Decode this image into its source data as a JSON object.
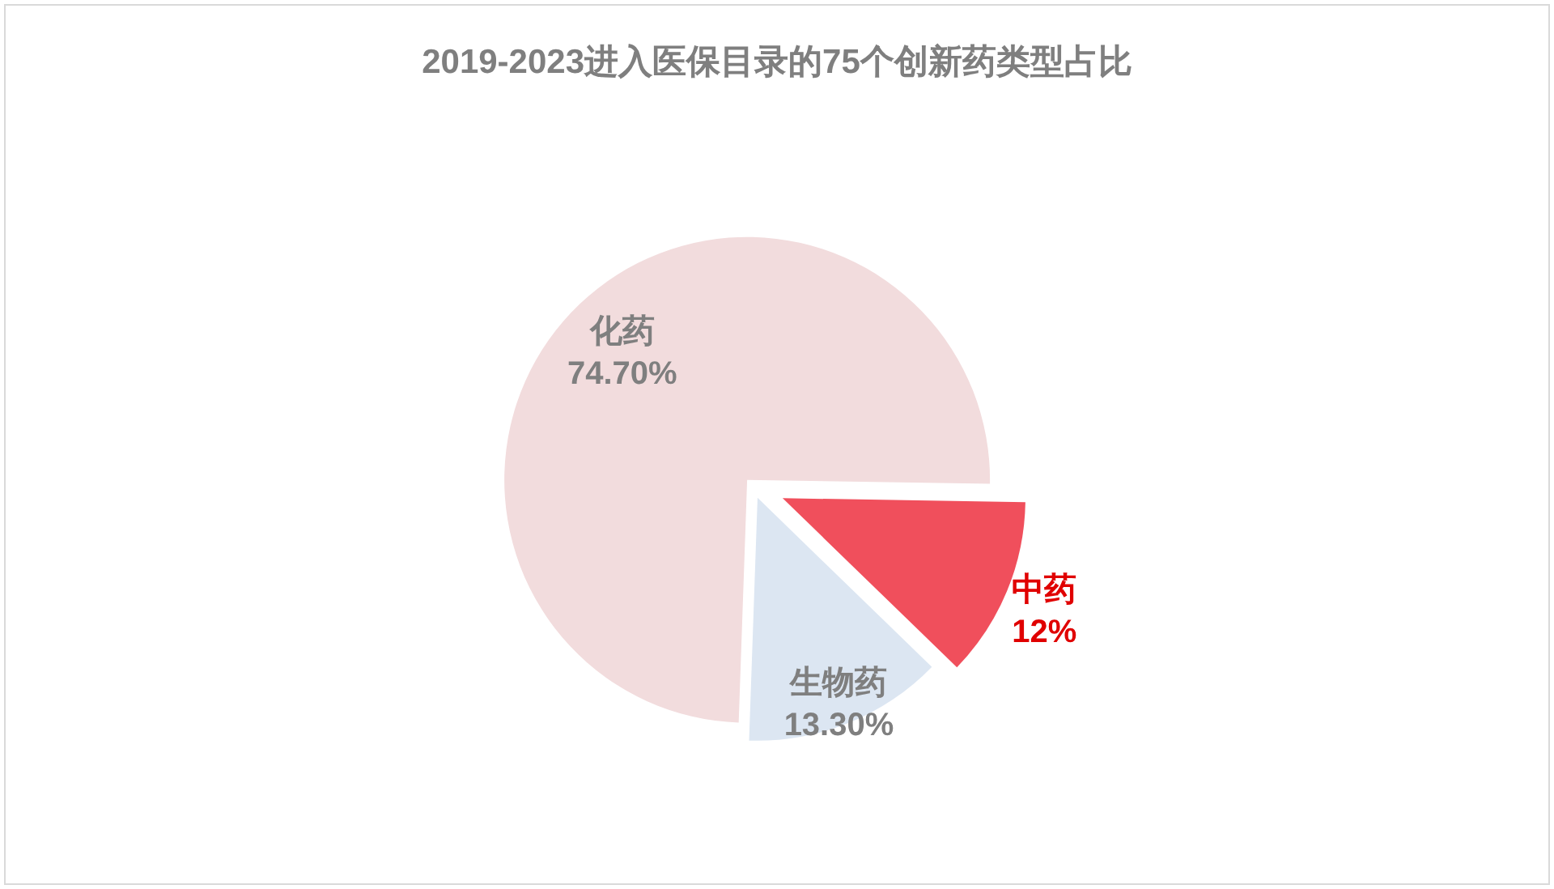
{
  "chart_data": {
    "type": "pie",
    "title": "2019-2023进入医保目录的75个创新药类型占比",
    "categories": [
      "化药",
      "中药",
      "生物药"
    ],
    "values": [
      74.7,
      12,
      13.3
    ],
    "value_labels": [
      "74.70%",
      "12%",
      "13.30%"
    ],
    "colors": [
      "#f2dcdd",
      "#f04f5c",
      "#dce6f2"
    ],
    "legend": false
  }
}
